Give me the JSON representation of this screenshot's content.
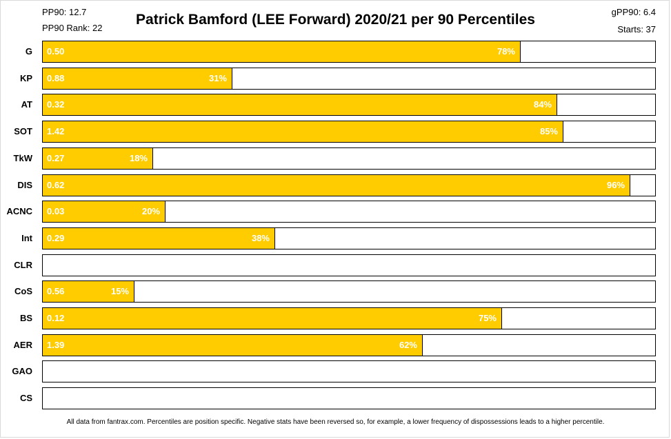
{
  "header": {
    "pp90": "PP90: 12.7",
    "pp90_rank": "PP90 Rank: 22",
    "gpp90": "gPP90: 6.4",
    "starts": "Starts: 37"
  },
  "footer": "All data from fantrax.com. Percentiles are position specific. Negative stats have been reversed so, for example, a lower frequency of dispossessions leads to a higher percentile.",
  "colors": {
    "bar": "#ffcc00",
    "track": "#ffffff",
    "border": "#000000"
  },
  "chart_data": {
    "type": "bar",
    "orientation": "horizontal",
    "title": "Patrick Bamford (LEE Forward) 2020/21 per 90 Percentiles",
    "xlabel": "",
    "ylabel": "",
    "xlim": [
      0,
      100
    ],
    "grid": false,
    "categories": [
      "G",
      "KP",
      "AT",
      "SOT",
      "TkW",
      "DIS",
      "ACNC",
      "Int",
      "CLR",
      "CoS",
      "BS",
      "AER",
      "GAO",
      "CS"
    ],
    "per90": [
      "0.50",
      "0.88",
      "0.32",
      "1.42",
      "0.27",
      "0.62",
      "0.03",
      "0.29",
      "",
      "0.56",
      "0.12",
      "1.39",
      "",
      ""
    ],
    "percentile_labels": [
      "78%",
      "31%",
      "84%",
      "85%",
      "18%",
      "96%",
      "20%",
      "38%",
      "",
      "15%",
      "75%",
      "62%",
      "",
      ""
    ],
    "percentiles": [
      78,
      31,
      84,
      85,
      18,
      96,
      20,
      38,
      null,
      15,
      75,
      62,
      null,
      null
    ]
  }
}
